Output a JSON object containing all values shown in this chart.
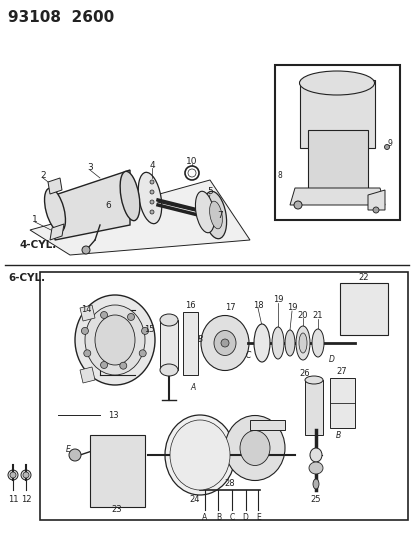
{
  "title": "93108  2600",
  "bg_color": "#ffffff",
  "title_fontsize": 11,
  "title_weight": "bold",
  "fig_width": 4.14,
  "fig_height": 5.33,
  "dpi": 100,
  "label_4cyl": "4-CYL.",
  "label_6cyl": "6-CYL.",
  "line_color": "#222222",
  "gray_fill": "#c8c8c8",
  "light_gray": "#e0e0e0",
  "white": "#ffffff"
}
